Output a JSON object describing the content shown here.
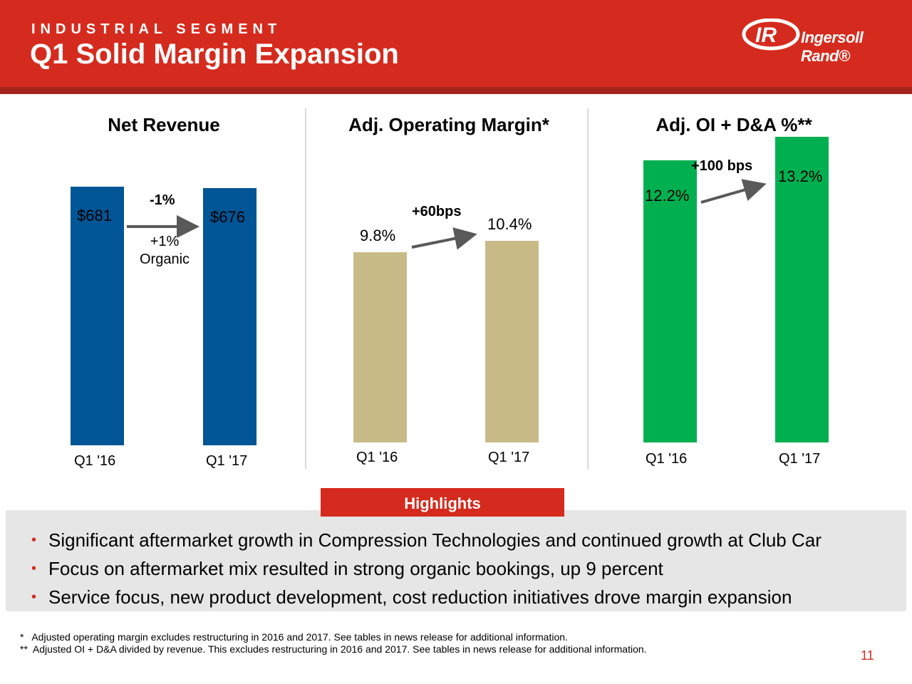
{
  "header": {
    "eyebrow": "INDUSTRIAL SEGMENT",
    "title": "Q1 Solid Margin Expansion",
    "logo_text": "Ingersoll Rand®",
    "brand_color": "#d52b1e"
  },
  "chart_data": [
    {
      "type": "bar",
      "title": "Net Revenue",
      "categories": [
        "Q1 '16",
        "Q1 '17"
      ],
      "values": [
        681,
        676
      ],
      "value_labels": [
        "$681",
        "$676"
      ],
      "ylim": [
        0,
        900
      ],
      "color": "#005596",
      "change_label": "-1%",
      "change_sub_label_1": "+1%",
      "change_sub_label_2": "Organic"
    },
    {
      "type": "bar",
      "title": "Adj. Operating Margin*",
      "categories": [
        "Q1 '16",
        "Q1 '17"
      ],
      "values": [
        9.8,
        10.4
      ],
      "value_labels": [
        "9.8%",
        "10.4%"
      ],
      "ylim": [
        0,
        18
      ],
      "color": "#c8bb88",
      "change_label": "+60bps"
    },
    {
      "type": "bar",
      "title": "Adj. OI + D&A %**",
      "categories": [
        "Q1 '16",
        "Q1 '17"
      ],
      "values": [
        12.2,
        13.2
      ],
      "value_labels": [
        "12.2%",
        "13.2%"
      ],
      "ylim": [
        0,
        18
      ],
      "color": "#00b050",
      "change_label": "+100 bps"
    }
  ],
  "highlights": {
    "label": "Highlights",
    "bullets": [
      "Significant aftermarket growth in Compression Technologies and continued growth at Club Car",
      "Focus on aftermarket mix resulted in strong organic bookings, up 9 percent",
      "Service focus, new product development, cost reduction initiatives drove margin expansion"
    ]
  },
  "footnotes": [
    "*   Adjusted operating margin excludes restructuring in 2016 and 2017. See tables in news release for additional information.",
    "**  Adjusted OI + D&A divided by revenue. This excludes restructuring in 2016 and 2017. See tables in news release for additional information."
  ],
  "page_number": "11"
}
